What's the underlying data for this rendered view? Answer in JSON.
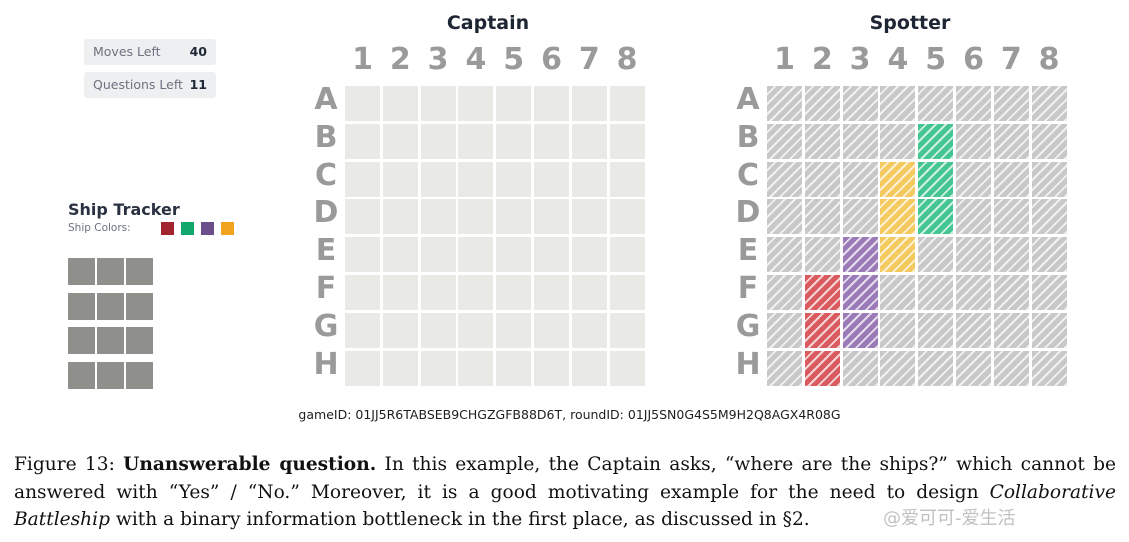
{
  "stats": {
    "moves_label": "Moves Left",
    "moves_value": "40",
    "questions_label": "Questions Left",
    "questions_value": "11"
  },
  "tracker": {
    "title": "Ship Tracker",
    "colors_label": "Ship Colors:",
    "ship_colors": [
      "#a2242f",
      "#13a86b",
      "#6b4e8a",
      "#f0a31c"
    ]
  },
  "captain": {
    "title": "Captain"
  },
  "spotter": {
    "title": "Spotter"
  },
  "board": {
    "columns": [
      "1",
      "2",
      "3",
      "4",
      "5",
      "6",
      "7",
      "8"
    ],
    "rows": [
      "A",
      "B",
      "C",
      "D",
      "E",
      "F",
      "G",
      "H"
    ]
  },
  "ships": [
    {
      "color": "#d95b60",
      "cells": [
        "F2",
        "G2",
        "H2"
      ]
    },
    {
      "color": "#9b7ab8",
      "cells": [
        "E3",
        "F3",
        "G3"
      ]
    },
    {
      "color": "#f4c95d",
      "cells": [
        "C4",
        "D4",
        "E4"
      ]
    },
    {
      "color": "#45c592",
      "cells": [
        "B5",
        "C5",
        "D5"
      ]
    }
  ],
  "game_info": "gameID: 01JJ5R6TABSEB9CHGZGFB88D6T, roundID: 01JJ5SN0G4S5M9H2Q8AGX4R08G",
  "caption": {
    "prefix": "Figure 13: ",
    "bold": "Unanswerable question.",
    "part1": " In this example, the Captain asks, “where are the ships?” which cannot be answered with “Yes” / “No.” Moreover, it is a good motivating example for the need to design ",
    "italic": "Collaborative Battleship",
    "part2": " with a binary information bottleneck in the first place, as discussed in §2."
  },
  "watermark": "@爱可可-爱生活"
}
